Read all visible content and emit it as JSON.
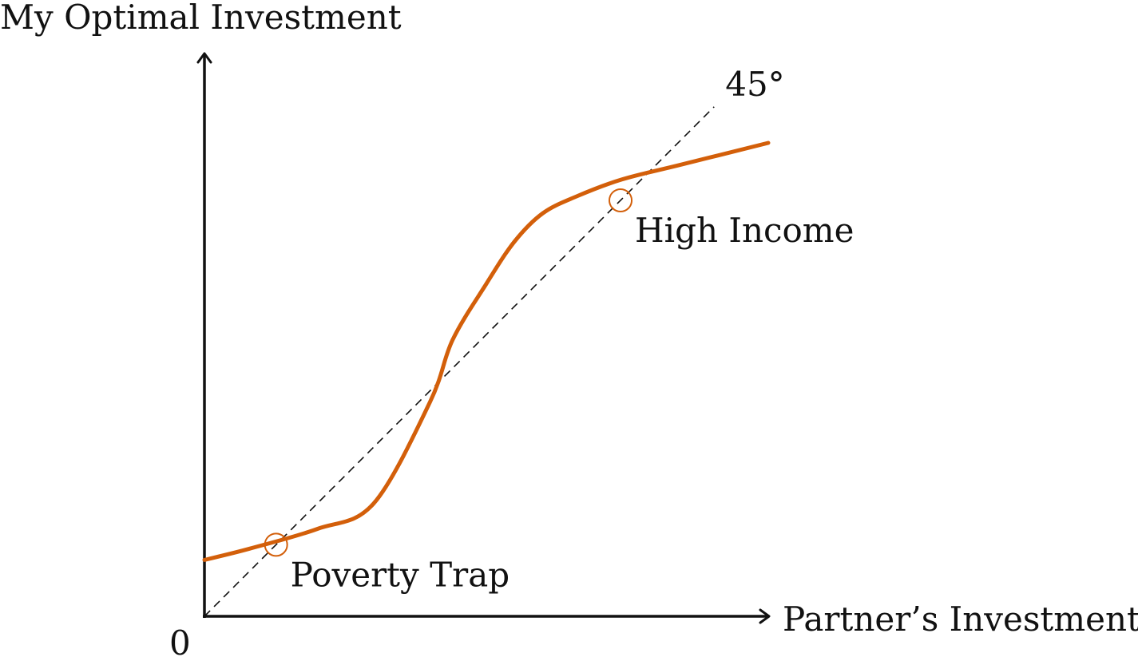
{
  "chart_data": {
    "type": "line",
    "title": "",
    "xlabel": "Partner’s Investment",
    "ylabel": "My Optimal Investment",
    "origin_label": "0",
    "xlim": [
      0,
      1
    ],
    "ylim": [
      0,
      1
    ],
    "grid": false,
    "diagonal": {
      "label": "45°",
      "x": [
        0,
        0.904
      ],
      "y": [
        0,
        0.904
      ]
    },
    "series": [
      {
        "color": "#d35f0a",
        "x": [
          0,
          0.08,
          0.2,
          0.3,
          0.4,
          0.44,
          0.5,
          0.55,
          0.6,
          0.66,
          0.74,
          0.84,
          1.0
        ],
        "y": [
          0.1,
          0.12,
          0.155,
          0.2,
          0.38,
          0.49,
          0.59,
          0.665,
          0.715,
          0.745,
          0.775,
          0.8,
          0.84
        ]
      }
    ],
    "annotations": [
      {
        "label": "Poverty Trap",
        "x": 0.127,
        "y": 0.127,
        "color": "#d35f0a"
      },
      {
        "label": "High Income",
        "x": 0.738,
        "y": 0.738,
        "color": "#d35f0a"
      }
    ]
  }
}
